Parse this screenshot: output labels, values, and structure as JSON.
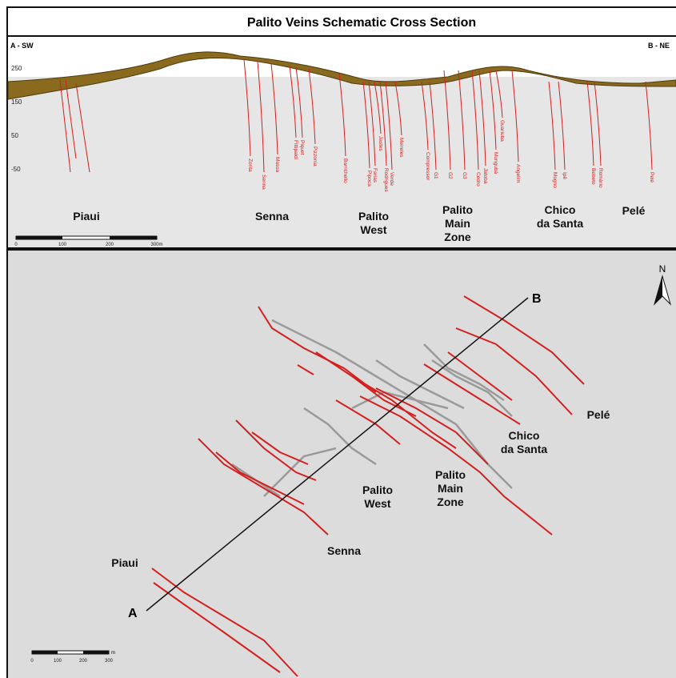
{
  "section": {
    "title": "Palito Veins Schematic Cross Section",
    "end_a": "A - SW",
    "end_b": "B - NE",
    "elevations": [
      250,
      150,
      50,
      -50
    ],
    "veins": [
      "Zorita",
      "Senna",
      "Massa",
      "Fittipaldi",
      "Piquet",
      "Pizzonia",
      "Barrichello",
      "Pipoca",
      "Farias",
      "Jastes",
      "Rodrigues",
      "Verde",
      "Meireles",
      "Compressor",
      "G1",
      "G2",
      "G3",
      "Cedro",
      "Jatobá",
      "Mungubá",
      "Guariuba",
      "Angelim",
      "Mogno",
      "Ipê",
      "Bebeto",
      "Romário",
      "Pelé"
    ],
    "zones": [
      [
        "Piaui"
      ],
      [
        "Senna"
      ],
      [
        "Palito",
        "West"
      ],
      [
        "Palito",
        "Main",
        "Zone"
      ],
      [
        "Chico",
        "da Santa"
      ],
      [
        "Pelé"
      ]
    ],
    "scale": [
      0,
      100,
      200,
      "300m"
    ]
  },
  "plan": {
    "north": "N",
    "point_a": "A",
    "point_b": "B",
    "zones": [
      [
        "Piaui"
      ],
      [
        "Senna"
      ],
      [
        "Palito",
        "West"
      ],
      [
        "Palito",
        "Main",
        "Zone"
      ],
      [
        "Chico",
        "da Santa"
      ],
      [
        "Pelé"
      ]
    ],
    "scale": [
      0,
      100,
      200,
      300
    ],
    "scale_unit": "m"
  }
}
